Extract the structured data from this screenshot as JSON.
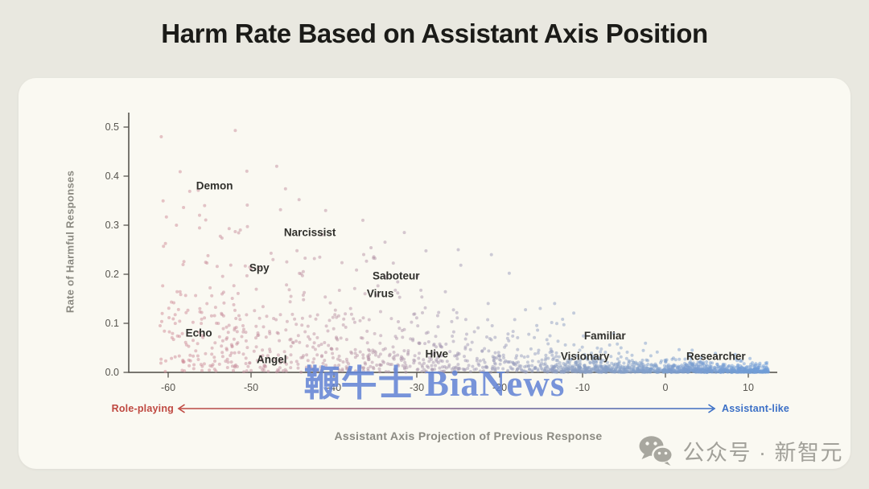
{
  "page": {
    "title": "Harm Rate Based on Assistant Axis Position",
    "background_color": "#e9e8e0",
    "card_background_color": "#faf9f2",
    "title_color": "#1b1b18"
  },
  "watermark": {
    "text": "鞭牛士 BiaNews",
    "color": "#6586d6"
  },
  "footer_badge": {
    "icon": "wechat-icon",
    "icon_color": "#a8a79f",
    "text": "公众号 · 新智元",
    "text_color": "#a2a19a"
  },
  "chart_data": {
    "type": "scatter",
    "title": "Harm Rate Based on Assistant Axis Position",
    "xlabel": "Assistant Axis Projection of Previous Response",
    "ylabel": "Rate of Harmful Responses",
    "xlim": [
      -65,
      13.5
    ],
    "ylim": [
      0,
      0.53
    ],
    "x_ticks": [
      -60,
      -50,
      -40,
      -30,
      -20,
      -10,
      0,
      10
    ],
    "y_ticks": [
      0.0,
      0.1,
      0.2,
      0.3,
      0.4,
      0.5
    ],
    "grid": false,
    "legend": null,
    "axis_color": "#4c4a45",
    "tick_label_color": "#57554f",
    "axis_title_color": "#8b8a82",
    "point_label_color": "#30302c",
    "direction_annotations": {
      "left": {
        "label": "Role-playing",
        "color": "#bf4840"
      },
      "right": {
        "label": "Assistant-like",
        "color": "#3b6fc6"
      }
    },
    "labeled_points": [
      {
        "label": "Demon",
        "x": -54.4,
        "rate": 0.38
      },
      {
        "label": "Narcissist",
        "x": -42.9,
        "rate": 0.285
      },
      {
        "label": "Spy",
        "x": -49.0,
        "rate": 0.213
      },
      {
        "label": "Saboteur",
        "x": -32.5,
        "rate": 0.197
      },
      {
        "label": "Virus",
        "x": -34.4,
        "rate": 0.161
      },
      {
        "label": "Echo",
        "x": -56.3,
        "rate": 0.08
      },
      {
        "label": "Angel",
        "x": -47.5,
        "rate": 0.026
      },
      {
        "label": "Hive",
        "x": -27.6,
        "rate": 0.038
      },
      {
        "label": "Familiar",
        "x": -7.3,
        "rate": 0.075
      },
      {
        "label": "Visionary",
        "x": -9.7,
        "rate": 0.033
      },
      {
        "label": "Researcher",
        "x": 6.1,
        "rate": 0.033
      }
    ],
    "outlier_points": [
      {
        "x": -51.9,
        "rate": 0.493
      },
      {
        "x": -50.5,
        "rate": 0.41
      },
      {
        "x": -46.9,
        "rate": 0.42
      },
      {
        "x": -57.4,
        "rate": 0.369
      },
      {
        "x": -55.6,
        "rate": 0.34
      },
      {
        "x": -44.2,
        "rate": 0.352
      },
      {
        "x": -41.0,
        "rate": 0.33
      },
      {
        "x": -36.5,
        "rate": 0.31
      },
      {
        "x": -59.0,
        "rate": 0.3
      },
      {
        "x": -31.5,
        "rate": 0.285
      },
      {
        "x": -25.0,
        "rate": 0.25
      },
      {
        "x": -21.0,
        "rate": 0.24
      }
    ],
    "cloud": {
      "description": "≈1900 conversation points; harmful-response rate decays as previous response becomes more assistant-like; color blends role-play pink to assistant blue",
      "seed": 42,
      "x_min": -61,
      "x_max": 12.5,
      "base_n": 1150,
      "right_strip_n": 650,
      "sparse_high_n": 70,
      "color_stops": [
        "#d08b96",
        "#b794a6",
        "#8c9fc3",
        "#6f9ed8"
      ],
      "point_radius": 2,
      "point_opacity": 0.5
    }
  }
}
